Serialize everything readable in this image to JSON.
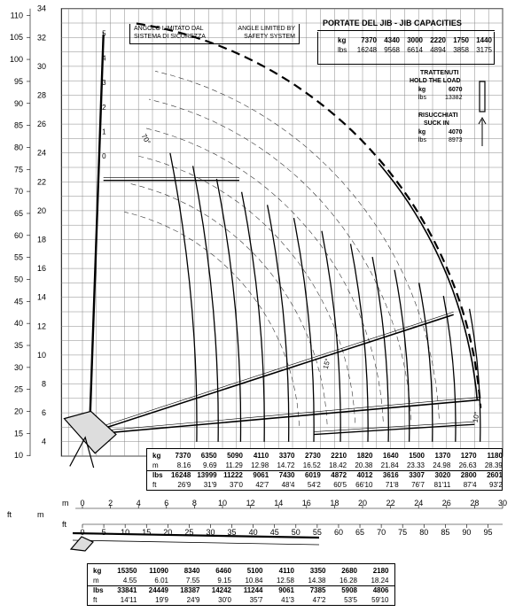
{
  "axes": {
    "y_m_labels": [
      "4",
      "6",
      "8",
      "10",
      "12",
      "14",
      "16",
      "18",
      "20",
      "22",
      "24",
      "26",
      "28",
      "30",
      "32",
      "34"
    ],
    "y_m_values": [
      4,
      6,
      8,
      10,
      12,
      14,
      16,
      18,
      20,
      22,
      24,
      26,
      28,
      30,
      32,
      34
    ],
    "y_ft_labels": [
      "10",
      "15",
      "20",
      "25",
      "30",
      "35",
      "40",
      "45",
      "50",
      "55",
      "60",
      "65",
      "70",
      "75",
      "80",
      "85",
      "90",
      "95",
      "100",
      "105",
      "110"
    ],
    "y_ft_values": [
      10,
      15,
      20,
      25,
      30,
      35,
      40,
      45,
      50,
      55,
      60,
      65,
      70,
      75,
      80,
      85,
      90,
      95,
      100,
      105,
      110
    ],
    "x_m_labels": [
      "0",
      "2",
      "4",
      "6",
      "8",
      "10",
      "12",
      "14",
      "16",
      "18",
      "20",
      "22",
      "24",
      "26",
      "28",
      "30"
    ],
    "x_m_values": [
      0,
      2,
      4,
      6,
      8,
      10,
      12,
      14,
      16,
      18,
      20,
      22,
      24,
      26,
      28,
      30
    ],
    "x_ft_labels": [
      "0",
      "5",
      "10",
      "15",
      "20",
      "25",
      "30",
      "35",
      "40",
      "45",
      "50",
      "55",
      "60",
      "65",
      "70",
      "75",
      "80",
      "85",
      "90",
      "95"
    ],
    "x_ft_values": [
      0,
      5,
      10,
      15,
      20,
      25,
      30,
      35,
      40,
      45,
      50,
      55,
      60,
      65,
      70,
      75,
      80,
      85,
      90,
      95
    ],
    "unit_ft": "ft",
    "unit_m": "m",
    "bottom_ft": "ft",
    "bottom_m": "m"
  },
  "boom_section_labels": [
    "0",
    "1",
    "2",
    "3",
    "4",
    "5"
  ],
  "angle_70": "70°",
  "angle_15": "15°",
  "angle_10": "10°",
  "limited_box": {
    "it_line1": "ANGOLO LIMITATO DAL",
    "it_line2": "SISTEMA DI SICUREZZA",
    "en_line1": "ANGLE LIMITED BY",
    "en_line2": "SAFETY SYSTEM"
  },
  "jib": {
    "title": "PORTATE DEL JIB  -  JIB CAPACITIES",
    "kg_label": "kg",
    "lbs_label": "lbs",
    "kg": [
      "7370",
      "4340",
      "3000",
      "2220",
      "1750",
      "1440"
    ],
    "lbs": [
      "16248",
      "9568",
      "6614",
      "4894",
      "3858",
      "3175"
    ],
    "hold_title1": "TRATTENUTI",
    "hold_title2": "HOLD THE LOAD",
    "hold_kg": "6070",
    "hold_lbs": "13382",
    "suck_title1": "RISUCCHIATI",
    "suck_title2": "SUCK IN",
    "suck_kg": "4070",
    "suck_lbs": "8973"
  },
  "main_table": {
    "labels": [
      "kg",
      "m",
      "lbs",
      "ft"
    ],
    "kg": [
      "7370",
      "6350",
      "5090",
      "4110",
      "3370",
      "2730",
      "2210",
      "1820",
      "1640",
      "1500",
      "1370",
      "1270",
      "1180"
    ],
    "m": [
      "8.16",
      "9.69",
      "11.29",
      "12.98",
      "14.72",
      "16.52",
      "18.42",
      "20.38",
      "21.84",
      "23.33",
      "24.98",
      "26.63",
      "28.39"
    ],
    "lbs": [
      "16248",
      "13999",
      "11222",
      "9061",
      "7430",
      "6019",
      "4872",
      "4012",
      "3616",
      "3307",
      "3020",
      "2800",
      "2601"
    ],
    "ft": [
      "26'9",
      "31'9",
      "37'0",
      "42'7",
      "48'4",
      "54'2",
      "60'5",
      "66'10",
      "71'8",
      "76'7",
      "81'11",
      "87'4",
      "93'2"
    ]
  },
  "bottom_table": {
    "labels": [
      "kg",
      "m",
      "lbs",
      "ft"
    ],
    "kg": [
      "15350",
      "11090",
      "8340",
      "6460",
      "5100",
      "4110",
      "3350",
      "2680",
      "2180"
    ],
    "m": [
      "4.55",
      "6.01",
      "7.55",
      "9.15",
      "10.84",
      "12.58",
      "14.38",
      "16.28",
      "18.24"
    ],
    "lbs": [
      "33841",
      "24449",
      "18387",
      "14242",
      "11244",
      "9061",
      "7385",
      "5908",
      "4806"
    ],
    "ft": [
      "14'11",
      "19'9",
      "24'9",
      "30'0",
      "35'7",
      "41'3",
      "47'2",
      "53'5",
      "59'10"
    ]
  }
}
